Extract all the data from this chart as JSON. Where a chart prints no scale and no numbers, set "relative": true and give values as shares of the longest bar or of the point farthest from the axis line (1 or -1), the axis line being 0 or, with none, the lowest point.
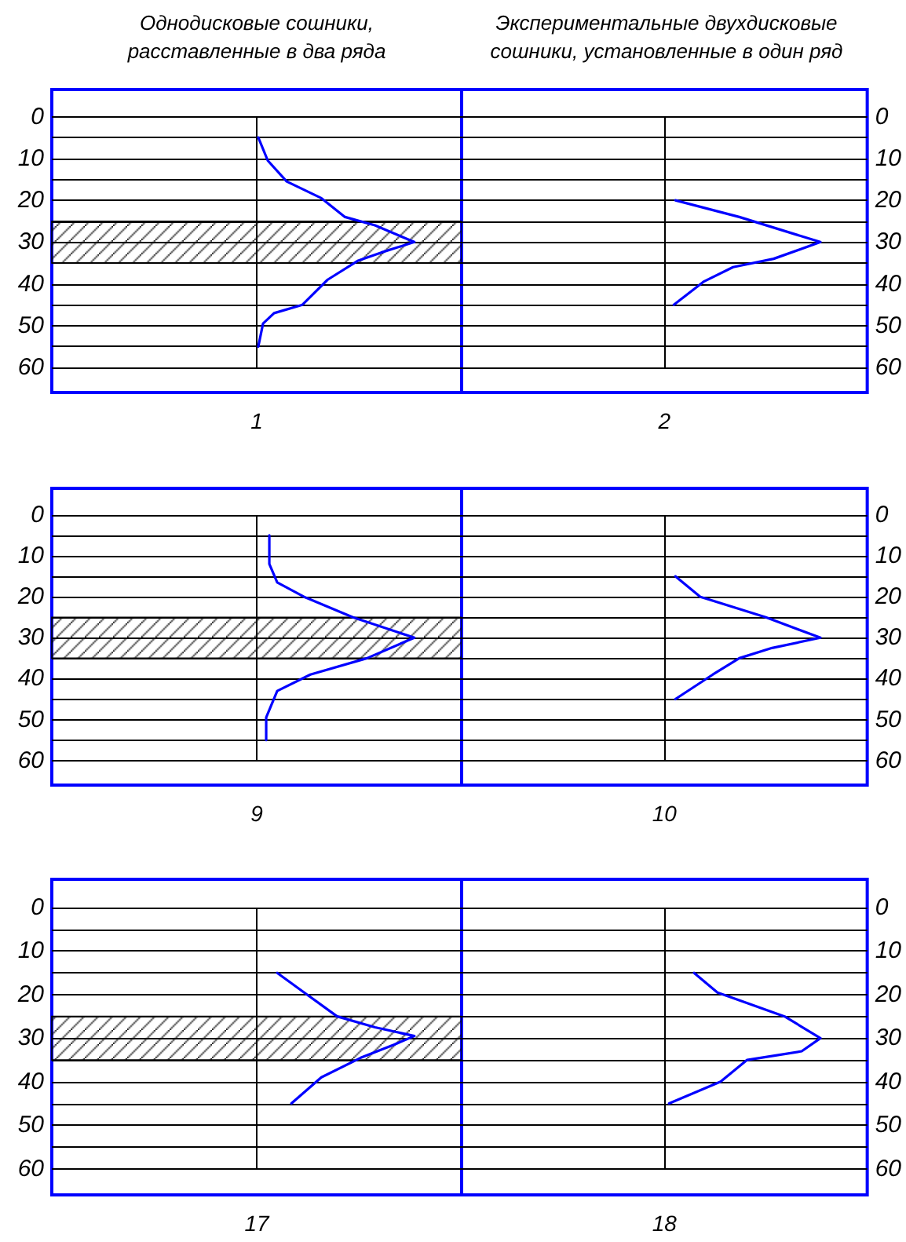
{
  "chart_data": [
    {
      "type": "line",
      "orientation": "horizontal",
      "title": "Однодисковые сошники, расставленные в два ряда",
      "xlabel": "1",
      "relative": true,
      "ylim": [
        66,
        -6.5
      ],
      "yticks": [
        0,
        {
          "value": 5,
          "label": null
        },
        10,
        {
          "value": 15,
          "label": null
        },
        20,
        {
          "value": 25,
          "label": null
        },
        30,
        {
          "value": 35,
          "label": null
        },
        40,
        {
          "value": 45,
          "label": null
        },
        50,
        {
          "value": 55,
          "label": null
        },
        60
      ],
      "tick_labels": "y",
      "grid": "y",
      "bands": [
        {
          "axis": "y",
          "from": 25,
          "to": 35,
          "color": "#000000"
        }
      ],
      "series": [
        {
          "color": "#0000ff",
          "x": [
            5,
            10.5,
            15.5,
            19.5,
            24,
            26,
            30,
            32.5,
            34.5,
            39,
            45,
            47,
            49.5,
            55
          ],
          "values": [
            0.01,
            0.07,
            0.19,
            0.41,
            0.56,
            0.75,
            1,
            0.79,
            0.64,
            0.45,
            0.29,
            0.11,
            0.04,
            0.01
          ]
        }
      ]
    },
    {
      "type": "line",
      "orientation": "horizontal",
      "title": "Экспериментальные двухдисковые сошники, установленные в один ряд",
      "xlabel": "2",
      "relative": true,
      "ylim": [
        66,
        -6.5
      ],
      "yticks": [
        0,
        {
          "value": 5,
          "label": null
        },
        10,
        {
          "value": 15,
          "label": null
        },
        20,
        {
          "value": 25,
          "label": null
        },
        30,
        {
          "value": 35,
          "label": null
        },
        40,
        {
          "value": 45,
          "label": null
        },
        50,
        {
          "value": 55,
          "label": null
        },
        60
      ],
      "tick_labels": "y",
      "grid": "y",
      "series": [
        {
          "color": "#0000ff",
          "x": [
            20,
            24,
            30,
            34,
            36,
            39.5,
            45
          ],
          "values": [
            0.07,
            0.48,
            1,
            0.7,
            0.44,
            0.25,
            0.06
          ]
        }
      ]
    },
    {
      "type": "line",
      "orientation": "horizontal",
      "xlabel": "9",
      "relative": true,
      "ylim": [
        66,
        -6.5
      ],
      "yticks": [
        0,
        {
          "value": 5,
          "label": null
        },
        10,
        {
          "value": 15,
          "label": null
        },
        20,
        {
          "value": 25,
          "label": null
        },
        30,
        {
          "value": 35,
          "label": null
        },
        40,
        {
          "value": 45,
          "label": null
        },
        50,
        {
          "value": 55,
          "label": null
        },
        60
      ],
      "tick_labels": "y",
      "grid": "y",
      "bands": [
        {
          "axis": "y",
          "from": 25,
          "to": 35,
          "color": "#000000"
        }
      ],
      "series": [
        {
          "color": "#0000ff",
          "x": [
            5,
            12,
            16.5,
            20,
            25,
            30,
            35,
            39,
            43,
            49.5,
            55
          ],
          "values": [
            0.08,
            0.08,
            0.13,
            0.3,
            0.61,
            1,
            0.7,
            0.34,
            0.13,
            0.06,
            0.06
          ]
        }
      ]
    },
    {
      "type": "line",
      "orientation": "horizontal",
      "xlabel": "10",
      "relative": true,
      "ylim": [
        66,
        -6.5
      ],
      "yticks": [
        0,
        {
          "value": 5,
          "label": null
        },
        10,
        {
          "value": 15,
          "label": null
        },
        20,
        {
          "value": 25,
          "label": null
        },
        30,
        {
          "value": 35,
          "label": null
        },
        40,
        {
          "value": 45,
          "label": null
        },
        50,
        {
          "value": 55,
          "label": null
        },
        60
      ],
      "tick_labels": "y",
      "grid": "y",
      "series": [
        {
          "color": "#0000ff",
          "x": [
            15,
            20,
            25,
            30,
            32.5,
            35,
            39,
            45
          ],
          "values": [
            0.07,
            0.23,
            0.65,
            1,
            0.69,
            0.48,
            0.31,
            0.07
          ]
        }
      ]
    },
    {
      "type": "line",
      "orientation": "horizontal",
      "xlabel": "17",
      "relative": true,
      "ylim": [
        66,
        -6.5
      ],
      "yticks": [
        0,
        {
          "value": 5,
          "label": null
        },
        10,
        {
          "value": 15,
          "label": null
        },
        20,
        {
          "value": 25,
          "label": null
        },
        30,
        {
          "value": 35,
          "label": null
        },
        40,
        {
          "value": 45,
          "label": null
        },
        50,
        {
          "value": 55,
          "label": null
        },
        60
      ],
      "tick_labels": "y",
      "grid": "y",
      "bands": [
        {
          "axis": "y",
          "from": 25,
          "to": 35,
          "color": "#000000"
        }
      ],
      "series": [
        {
          "color": "#0000ff",
          "x": [
            15,
            20,
            25,
            27.5,
            29.5,
            31.5,
            34.5,
            39,
            45
          ],
          "values": [
            0.13,
            0.32,
            0.51,
            0.75,
            1,
            0.87,
            0.66,
            0.41,
            0.22
          ]
        }
      ]
    },
    {
      "type": "line",
      "orientation": "horizontal",
      "xlabel": "18",
      "relative": true,
      "ylim": [
        66,
        -6.5
      ],
      "yticks": [
        0,
        {
          "value": 5,
          "label": null
        },
        10,
        {
          "value": 15,
          "label": null
        },
        20,
        {
          "value": 25,
          "label": null
        },
        30,
        {
          "value": 35,
          "label": null
        },
        40,
        {
          "value": 45,
          "label": null
        },
        50,
        {
          "value": 55,
          "label": null
        },
        60
      ],
      "tick_labels": "y",
      "grid": "y",
      "series": [
        {
          "color": "#0000ff",
          "x": [
            15,
            19.5,
            25,
            30,
            33,
            35,
            40,
            45
          ],
          "values": [
            0.19,
            0.34,
            0.77,
            1,
            0.88,
            0.53,
            0.36,
            0.03
          ]
        }
      ]
    }
  ]
}
